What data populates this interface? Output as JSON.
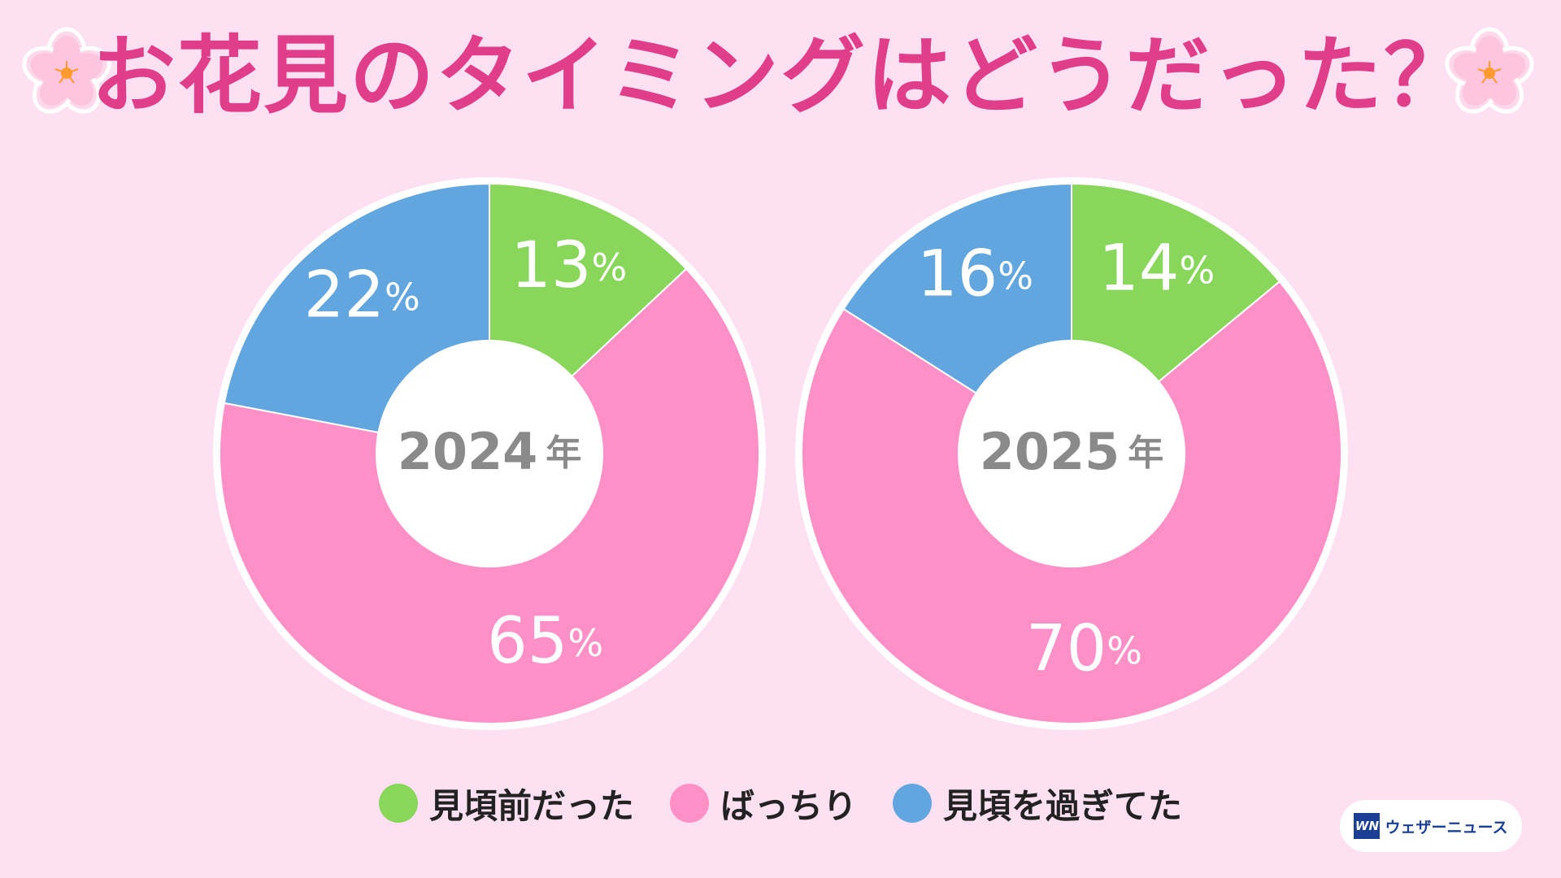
{
  "title": "お花見のタイミングはどうだった？",
  "logo": {
    "mark": "WN",
    "text": "ウェザーニュース"
  },
  "colors": {
    "background": "#fde0f1",
    "title": "#e03d8b",
    "before_peak": "#88d65a",
    "just_right": "#ff8fc7",
    "after_peak": "#62a6e0"
  },
  "icons": [
    "sakura-flower-icon"
  ],
  "legend": [
    {
      "label": "見頃前だった",
      "color": "#88d65a"
    },
    {
      "label": "ばっちり",
      "color": "#ff8fc7"
    },
    {
      "label": "見頃を過ぎてた",
      "color": "#62a6e0"
    }
  ],
  "chart_data": [
    {
      "type": "pie",
      "year": "2024",
      "year_suffix": "年",
      "categories": [
        "見頃前だった",
        "ばっちり",
        "見頃を過ぎてた"
      ],
      "values": [
        13,
        65,
        22
      ],
      "unit": "%",
      "colors": [
        "#88d65a",
        "#ff8fc7",
        "#62a6e0"
      ]
    },
    {
      "type": "pie",
      "year": "2025",
      "year_suffix": "年",
      "categories": [
        "見頃前だった",
        "ばっちり",
        "見頃を過ぎてた"
      ],
      "values": [
        14,
        70,
        16
      ],
      "unit": "%",
      "colors": [
        "#88d65a",
        "#ff8fc7",
        "#62a6e0"
      ]
    }
  ]
}
